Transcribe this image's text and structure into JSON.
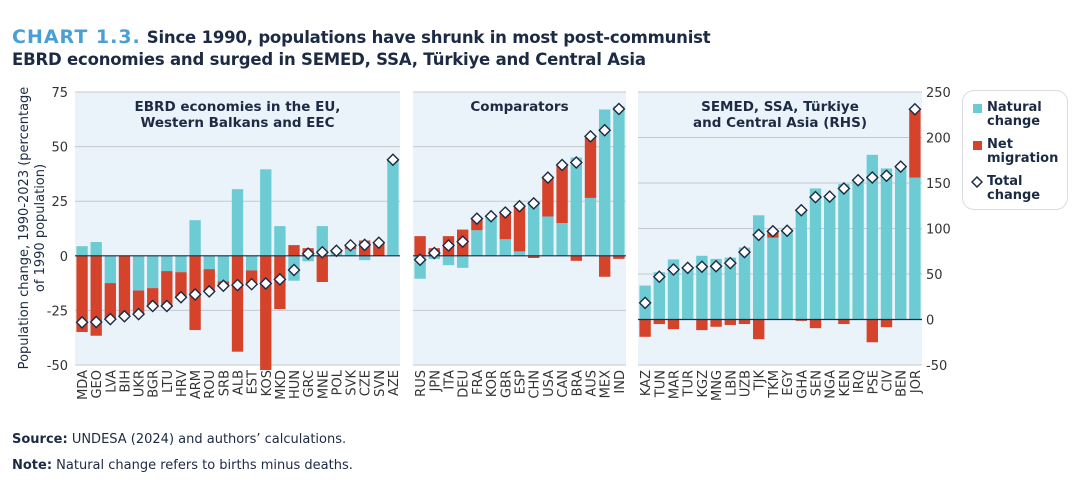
{
  "header": {
    "label": "CHART 1.3.",
    "title_line1": "Since 1990, populations have shrunk in most post-communist",
    "title_line2": "EBRD economies and surged in SEMED, SSA, Türkiye and Central Asia"
  },
  "footer": {
    "source_label": "Source:",
    "source_text": " UNDESA (2024) and authors’ calculations.",
    "note_label": "Note:",
    "note_text": " Natural change refers to births minus deaths."
  },
  "colors": {
    "natural": "#6ccbd3",
    "migration": "#d5432b",
    "panel_bg": "#eaf2fa",
    "title_accent": "#4a9fd4"
  },
  "legend": {
    "natural": "Natural change",
    "migration": "Net migration",
    "total": "Total change"
  },
  "chart_data": {
    "type": "bar",
    "stacked": true,
    "ylabel": "Population change, 1990-2023 (percentage of 1990 population)",
    "ylabel_line1": "Population change, 1990-2023 (percentage",
    "ylabel_line2": "of 1990 population)",
    "left_axis": {
      "ylim": [
        -50,
        75
      ],
      "ticks": [
        "75",
        "50",
        "25",
        "0",
        "-25",
        "-50"
      ],
      "tick_values": [
        75,
        50,
        25,
        0,
        -25,
        -50
      ]
    },
    "right_axis": {
      "ylim": [
        -50,
        250
      ],
      "ticks": [
        "250",
        "200",
        "150",
        "100",
        "50",
        "0",
        "-50"
      ],
      "tick_values": [
        250,
        200,
        150,
        100,
        50,
        0,
        -50
      ]
    },
    "series_names": [
      "Natural change",
      "Net migration",
      "Total change"
    ],
    "panels": [
      {
        "title_line1": "EBRD economies in the EU,",
        "title_line2": "Western Balkans and EEC",
        "axis": "left",
        "categories": [
          "MDA",
          "GEO",
          "LVA",
          "BIH",
          "UKR",
          "BGR",
          "LTU",
          "HRV",
          "ARM",
          "ROU",
          "SRB",
          "ALB",
          "EST",
          "KOS",
          "MKD",
          "HUN",
          "GRC",
          "MNE",
          "POL",
          "SVK",
          "CZE",
          "SVN",
          "AZE"
        ],
        "natural": [
          4.4,
          6.3,
          -12.5,
          0,
          -15.9,
          -14.8,
          -7,
          -7.5,
          16.3,
          -6.1,
          -11.7,
          30.5,
          -6.7,
          39.6,
          13.6,
          -11.4,
          -2.5,
          13.6,
          1.5,
          3,
          -2,
          0,
          43
        ],
        "migration": [
          -34.9,
          -36.6,
          -16.5,
          -27.7,
          -10.8,
          -8.2,
          -16,
          -11.5,
          -34,
          -10.2,
          -2,
          -43.9,
          -6.3,
          -52.3,
          -24.4,
          4.9,
          3.5,
          -12,
          0.8,
          1.8,
          7,
          6,
          1.2
        ],
        "total": [
          -30.5,
          -30.3,
          -29,
          -27.7,
          -26.7,
          -23,
          -23,
          -19,
          -17.7,
          -16.3,
          -13.7,
          -13.4,
          -13,
          -12.7,
          -10.8,
          -6.5,
          1,
          1.6,
          2.3,
          4.8,
          5,
          6,
          44
        ]
      },
      {
        "title_line1": "Comparators",
        "title_line2": "",
        "axis": "left",
        "categories": [
          "RUS",
          "JPN",
          "ITA",
          "DEU",
          "FRA",
          "KOR",
          "GBR",
          "ESP",
          "CHN",
          "USA",
          "CAN",
          "BRA",
          "AUS",
          "MEX",
          "IND"
        ],
        "natural": [
          -10.5,
          -1.5,
          -4.3,
          -5.5,
          11.7,
          18.1,
          7.6,
          2,
          25,
          18,
          15,
          45,
          26.5,
          67,
          68.5
        ],
        "migration": [
          9,
          3.5,
          9,
          12,
          5.2,
          0,
          12.2,
          20.7,
          -1,
          17.8,
          26.6,
          -2.3,
          28.2,
          -9.6,
          -1.4
        ],
        "total": [
          -1.8,
          1.3,
          4.7,
          6.5,
          17,
          18.1,
          19.8,
          22.7,
          24,
          35.8,
          41.6,
          42.7,
          54.7,
          57.5,
          67.2
        ]
      },
      {
        "title_line1": "SEMED, SSA, Türkiye",
        "title_line2": "and Central Asia (RHS)",
        "axis": "right",
        "categories": [
          "KAZ",
          "TUN",
          "MAR",
          "TUR",
          "KGZ",
          "MNG",
          "LBN",
          "UZB",
          "TJK",
          "TKM",
          "EGY",
          "GHA",
          "SEN",
          "NGA",
          "KEN",
          "IRQ",
          "PSE",
          "CIV",
          "BEN",
          "JOR"
        ],
        "natural": [
          37.3,
          52,
          66,
          57,
          70,
          66.6,
          68,
          79,
          114.5,
          90,
          97.5,
          121,
          144,
          135,
          149,
          153,
          181,
          166,
          168,
          156
        ],
        "migration": [
          -19,
          -5,
          -10.6,
          0,
          -11.7,
          -8,
          -6,
          -5,
          -21.6,
          7,
          0,
          -1.5,
          -9.5,
          0,
          -5,
          0,
          -25,
          -8.4,
          0,
          75
        ],
        "total": [
          18.3,
          47,
          55,
          56.7,
          58,
          58.5,
          62,
          74,
          93,
          97,
          97.5,
          120,
          134.5,
          135,
          144,
          153,
          156,
          158,
          168,
          231
        ]
      }
    ]
  }
}
